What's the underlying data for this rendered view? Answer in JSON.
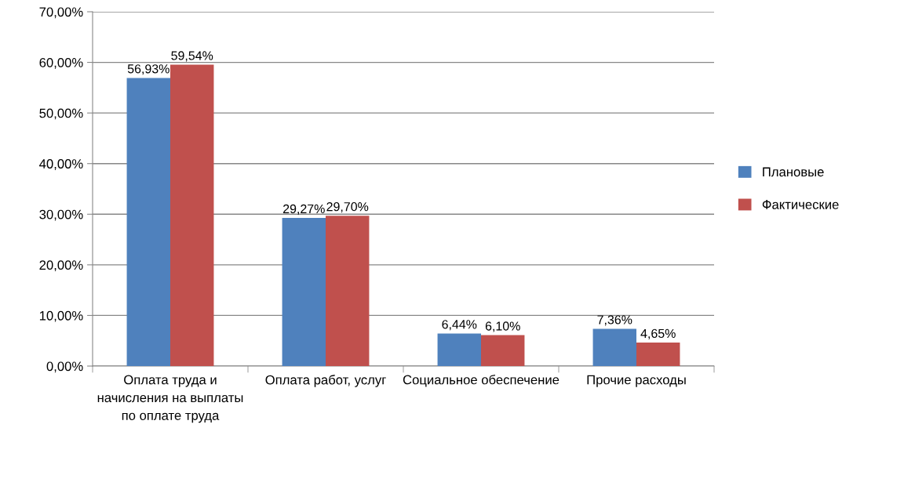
{
  "chart_data": {
    "type": "bar",
    "categories": [
      "Оплата труда и начисления на выплаты по оплате труда",
      "Оплата работ, услуг",
      "Социальное обеспечение",
      "Прочие расходы"
    ],
    "series": [
      {
        "name": "Плановые",
        "color": "#4f81bd",
        "values": [
          56.93,
          29.27,
          6.44,
          7.36
        ],
        "value_labels": [
          "56,93%",
          "29,27%",
          "6,44%",
          "7,36%"
        ]
      },
      {
        "name": "Фактические",
        "color": "#c0504d",
        "values": [
          59.54,
          29.7,
          6.1,
          4.65
        ],
        "value_labels": [
          "59,54%",
          "29,70%",
          "6,10%",
          "4,65%"
        ]
      }
    ],
    "ylim": [
      0,
      70
    ],
    "yticks": [
      {
        "value": 0,
        "label": "0,00%"
      },
      {
        "value": 10,
        "label": "10,00%"
      },
      {
        "value": 20,
        "label": "20,00%"
      },
      {
        "value": 30,
        "label": "30,00%"
      },
      {
        "value": 40,
        "label": "40,00%"
      },
      {
        "value": 50,
        "label": "50,00%"
      },
      {
        "value": 60,
        "label": "60,00%"
      },
      {
        "value": 70,
        "label": "70,00%"
      }
    ],
    "grid": "y",
    "legend": "right"
  }
}
